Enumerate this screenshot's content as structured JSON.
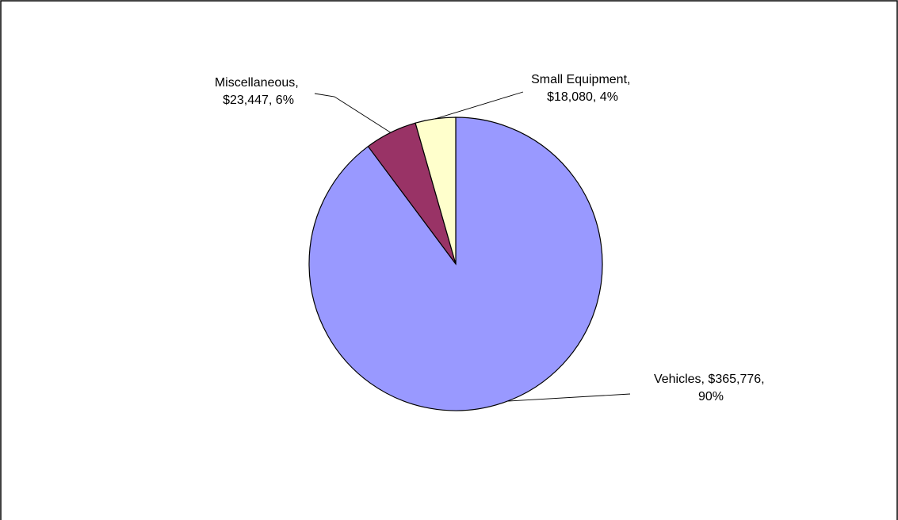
{
  "chart_data": {
    "type": "pie",
    "title": "",
    "slices": [
      {
        "label": "Vehicles",
        "value": 365776,
        "value_text": "$365,776",
        "percent_text": "90%",
        "color": "#9999FF"
      },
      {
        "label": "Miscellaneous",
        "value": 23447,
        "value_text": "$23,447",
        "percent_text": "6%",
        "color": "#993366"
      },
      {
        "label": "Small Equipment",
        "value": 18080,
        "value_text": "$18,080",
        "percent_text": "4%",
        "color": "#FFFFCC"
      }
    ],
    "start_angle_deg": 0,
    "direction": "clockwise",
    "legend": "none"
  }
}
